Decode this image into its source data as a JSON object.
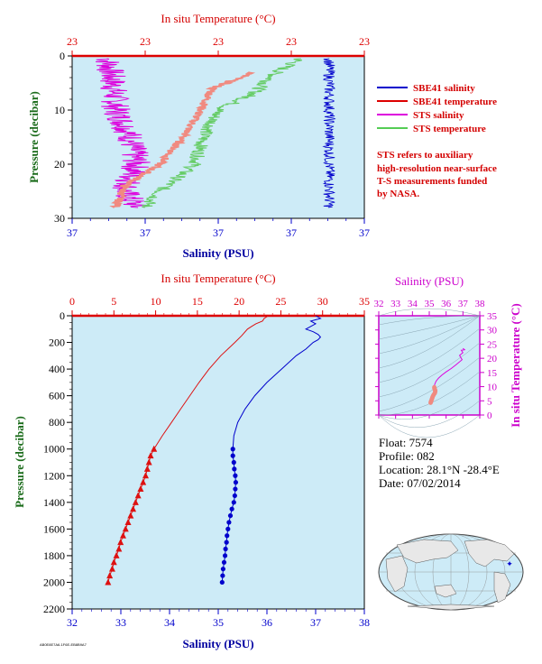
{
  "chart_data": [
    {
      "type": "line",
      "name_of_panel": "top",
      "top_axis_label": "In situ Temperature (°C)",
      "top_ticks": [
        "23",
        "23",
        "23",
        "23",
        "23"
      ],
      "bottom_axis_label": "Salinity (PSU)",
      "bottom_ticks": [
        "37",
        "37",
        "37",
        "37",
        "37"
      ],
      "ylabel": "Pressure (decibar)",
      "y_ticks": [
        "0",
        "10",
        "20",
        "30"
      ],
      "ylim": [
        30,
        0
      ],
      "legend": [
        {
          "name": "SBE41 salinity",
          "color": "#0000cc"
        },
        {
          "name": "SBE41 temperature",
          "color": "#dd0000"
        },
        {
          "name": "STS salinity",
          "color": "#dd00dd"
        },
        {
          "name": "STS temperature",
          "color": "#55cc55"
        }
      ],
      "note_lines": [
        "STS refers to auxiliary",
        "high-resolution near-surface",
        "T-S measurements funded",
        "by NASA."
      ],
      "series": [
        {
          "name": "STS salinity",
          "approx_x_fraction_by_pressure": [
            [
              0.5,
              0.12
            ],
            [
              5,
              0.14
            ],
            [
              10,
              0.15
            ],
            [
              15,
              0.2
            ],
            [
              20,
              0.22
            ],
            [
              25,
              0.18
            ],
            [
              28,
              0.22
            ]
          ]
        },
        {
          "name": "STS temperature",
          "approx_x_fraction_by_pressure": [
            [
              0.5,
              0.78
            ],
            [
              3,
              0.7
            ],
            [
              7,
              0.62
            ],
            [
              10,
              0.5
            ],
            [
              15,
              0.45
            ],
            [
              20,
              0.42
            ],
            [
              25,
              0.3
            ],
            [
              28,
              0.25
            ]
          ]
        },
        {
          "name": "SBE41 temperature (salmon)",
          "approx_x_fraction_by_pressure": [
            [
              3,
              0.62
            ],
            [
              6,
              0.48
            ],
            [
              10,
              0.44
            ],
            [
              15,
              0.38
            ],
            [
              20,
              0.3
            ],
            [
              24,
              0.18
            ],
            [
              28,
              0.15
            ]
          ]
        },
        {
          "name": "SBE41 salinity",
          "approx_x_fraction_by_pressure": [
            [
              1,
              0.9
            ],
            [
              10,
              0.88
            ],
            [
              20,
              0.88
            ],
            [
              28,
              0.88
            ]
          ]
        }
      ]
    },
    {
      "type": "line",
      "name_of_panel": "main",
      "top_axis_label": "In situ Temperature (°C)",
      "temperature_ticks": [
        "0",
        "5",
        "10",
        "15",
        "20",
        "25",
        "30",
        "35"
      ],
      "temperature_range": [
        0,
        35
      ],
      "bottom_axis_label": "Salinity (PSU)",
      "salinity_ticks": [
        "32",
        "33",
        "34",
        "35",
        "36",
        "37",
        "38"
      ],
      "salinity_range": [
        32,
        38
      ],
      "ylabel": "Pressure (decibar)",
      "y_ticks": [
        "0",
        "200",
        "400",
        "600",
        "800",
        "1000",
        "1200",
        "1400",
        "1600",
        "1800",
        "2000",
        "2200"
      ],
      "ylim": [
        2200,
        0
      ],
      "temperature_profile": [
        [
          0,
          23.5
        ],
        [
          20,
          23.0
        ],
        [
          40,
          22.8
        ],
        [
          60,
          22.0
        ],
        [
          80,
          21.5
        ],
        [
          100,
          21.0
        ],
        [
          150,
          20.3
        ],
        [
          200,
          19.5
        ],
        [
          300,
          17.8
        ],
        [
          400,
          16.4
        ],
        [
          500,
          15.2
        ],
        [
          600,
          14.1
        ],
        [
          700,
          13.0
        ],
        [
          800,
          11.9
        ],
        [
          900,
          10.8
        ],
        [
          1000,
          9.8
        ],
        [
          1050,
          9.4
        ],
        [
          1100,
          9.2
        ],
        [
          1150,
          9.0
        ],
        [
          1200,
          8.8
        ],
        [
          1250,
          8.5
        ],
        [
          1300,
          8.2
        ],
        [
          1350,
          7.9
        ],
        [
          1400,
          7.6
        ],
        [
          1450,
          7.3
        ],
        [
          1500,
          7.0
        ],
        [
          1550,
          6.7
        ],
        [
          1600,
          6.4
        ],
        [
          1650,
          6.1
        ],
        [
          1700,
          5.8
        ],
        [
          1750,
          5.6
        ],
        [
          1800,
          5.3
        ],
        [
          1850,
          5.0
        ],
        [
          1900,
          4.8
        ],
        [
          1950,
          4.5
        ],
        [
          2000,
          4.3
        ]
      ],
      "temperature_markers_from": 1000,
      "salinity_profile": [
        [
          0,
          37.0
        ],
        [
          20,
          37.1
        ],
        [
          40,
          36.9
        ],
        [
          60,
          37.0
        ],
        [
          80,
          36.9
        ],
        [
          100,
          36.8
        ],
        [
          120,
          36.95
        ],
        [
          140,
          37.05
        ],
        [
          160,
          37.1
        ],
        [
          180,
          37.05
        ],
        [
          200,
          36.95
        ],
        [
          250,
          36.8
        ],
        [
          300,
          36.6
        ],
        [
          400,
          36.3
        ],
        [
          500,
          36.0
        ],
        [
          600,
          35.75
        ],
        [
          700,
          35.55
        ],
        [
          800,
          35.4
        ],
        [
          900,
          35.32
        ],
        [
          1000,
          35.3
        ],
        [
          1050,
          35.3
        ],
        [
          1100,
          35.32
        ],
        [
          1150,
          35.33
        ],
        [
          1200,
          35.35
        ],
        [
          1250,
          35.36
        ],
        [
          1300,
          35.35
        ],
        [
          1350,
          35.34
        ],
        [
          1400,
          35.32
        ],
        [
          1450,
          35.28
        ],
        [
          1500,
          35.25
        ],
        [
          1550,
          35.22
        ],
        [
          1600,
          35.2
        ],
        [
          1650,
          35.18
        ],
        [
          1700,
          35.17
        ],
        [
          1750,
          35.15
        ],
        [
          1800,
          35.14
        ],
        [
          1850,
          35.12
        ],
        [
          1900,
          35.1
        ],
        [
          1950,
          35.09
        ],
        [
          2000,
          35.08
        ]
      ],
      "salinity_markers_from": 1000
    },
    {
      "type": "scatter",
      "name_of_panel": "ts-diagram",
      "top_axis_label": "Salinity (PSU)",
      "salinity_ticks": [
        "32",
        "33",
        "34",
        "35",
        "36",
        "37",
        "38"
      ],
      "salinity_range": [
        32,
        38
      ],
      "right_axis_label": "In situ Temperature (°C)",
      "temperature_ticks": [
        "0",
        "5",
        "10",
        "15",
        "20",
        "25",
        "30",
        "35"
      ],
      "temperature_range": [
        0,
        35
      ]
    }
  ],
  "float_info": {
    "float": "Float:  7574",
    "profile": "Profile:  082",
    "location": "Location:  28.1°N  -28.4°E",
    "date": "Date:  07/02/2014"
  },
  "footer_code": "AB0E8E7A6-1F6E-EB8B9A7",
  "colors": {
    "plot_bg": "#cdebf7",
    "temperature": "#dd1111",
    "salinity": "#0000cc",
    "sts_salinity": "#dd00dd",
    "sts_temperature": "#66cc66",
    "sbe_temp_salmon": "#f08a80",
    "magenta_axis": "#cc00cc"
  }
}
